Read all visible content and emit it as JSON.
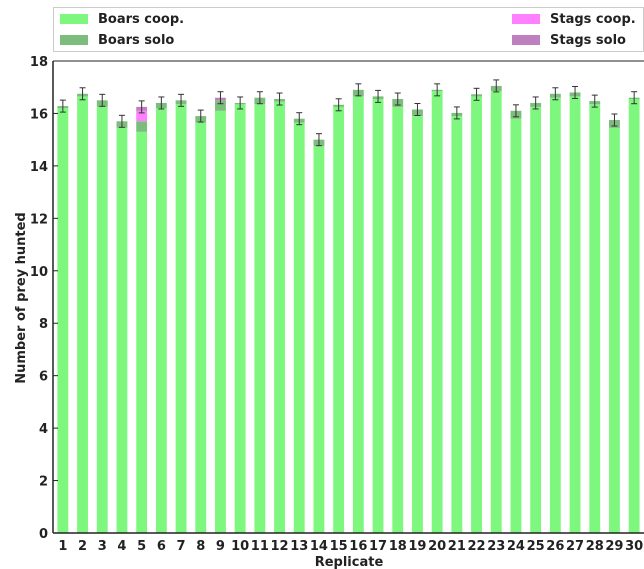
{
  "chart_data": {
    "type": "bar",
    "stacked": true,
    "xlabel": "Replicate",
    "ylabel": "Number of prey hunted",
    "ylim": [
      0,
      18
    ],
    "yticks": [
      0,
      2,
      4,
      6,
      8,
      10,
      12,
      14,
      16,
      18
    ],
    "grid": false,
    "legend_position": "top",
    "categories": [
      "1",
      "2",
      "3",
      "4",
      "5",
      "6",
      "7",
      "8",
      "9",
      "10",
      "11",
      "12",
      "13",
      "14",
      "15",
      "16",
      "17",
      "18",
      "19",
      "20",
      "21",
      "22",
      "23",
      "24",
      "25",
      "26",
      "27",
      "28",
      "29",
      "30"
    ],
    "series": [
      {
        "name": "Boars coop.",
        "color": "#7ef77e",
        "values": [
          16.2,
          16.65,
          16.25,
          15.45,
          15.3,
          16.2,
          16.35,
          15.65,
          16.1,
          16.35,
          16.35,
          16.45,
          15.65,
          14.75,
          16.25,
          16.65,
          16.55,
          16.25,
          15.9,
          16.85,
          15.9,
          16.65,
          16.85,
          15.8,
          16.25,
          16.6,
          16.65,
          16.35,
          15.45,
          16.55
        ]
      },
      {
        "name": "Boars solo",
        "color": "#7cbc7c",
        "values": [
          0.08,
          0.1,
          0.25,
          0.25,
          0.4,
          0.2,
          0.15,
          0.25,
          0.4,
          0.05,
          0.25,
          0.1,
          0.15,
          0.25,
          0.08,
          0.25,
          0.1,
          0.3,
          0.25,
          0.05,
          0.12,
          0.08,
          0.2,
          0.3,
          0.15,
          0.15,
          0.15,
          0.12,
          0.3,
          0.05
        ]
      },
      {
        "name": "Stags coop.",
        "color": "#ff80ff",
        "values": [
          0,
          0,
          0,
          0,
          0.4,
          0,
          0,
          0,
          0,
          0,
          0,
          0,
          0,
          0,
          0,
          0,
          0,
          0,
          0,
          0,
          0,
          0,
          0,
          0,
          0,
          0,
          0,
          0,
          0,
          0
        ]
      },
      {
        "name": "Stags solo",
        "color": "#bf80bf",
        "values": [
          0,
          0,
          0,
          0,
          0.15,
          0,
          0,
          0,
          0.1,
          0,
          0,
          0,
          0,
          0,
          0,
          0,
          0,
          0,
          0,
          0,
          0,
          0,
          0,
          0,
          0,
          0,
          0,
          0,
          0,
          0
        ]
      }
    ]
  }
}
